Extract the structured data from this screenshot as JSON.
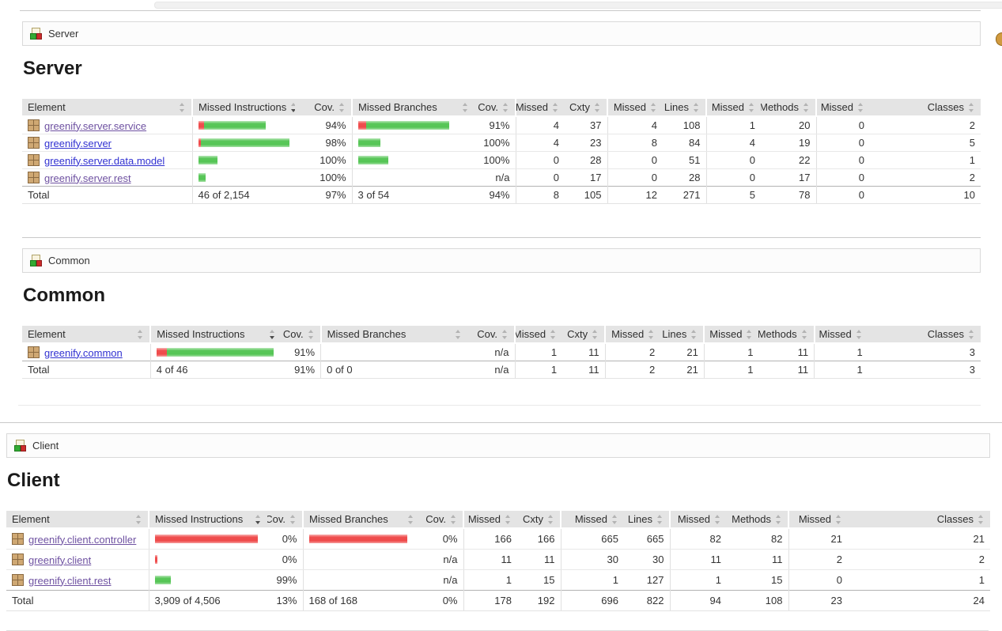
{
  "sort": {
    "column": "Missed Instructions",
    "direction": "desc"
  },
  "colors": {
    "bar_missed": "#ee4040",
    "bar_covered": "#4cc24c",
    "link_blue": "#3131d1",
    "link_purple": "#6e51a1"
  },
  "icons": {
    "breadcrumb": "group-icon",
    "package": "package-icon",
    "top_right": "sessions-icon",
    "sort": "sort-icon"
  },
  "sections": [
    {
      "id": "server",
      "crumb": "Server",
      "heading": "Server",
      "columns": [
        "Element",
        "Missed Instructions",
        "Cov.",
        "Missed Branches",
        "Cov.",
        "Missed",
        "Cxty",
        "Missed",
        "Lines",
        "Missed",
        "Methods",
        "Missed",
        "Classes"
      ],
      "rows": [
        {
          "name": "greenify.server.service",
          "color": "link_purple",
          "ins_bar": {
            "missed": 7,
            "covered": 78
          },
          "ins_cov": "94%",
          "br_bar": {
            "missed": 10,
            "covered": 105
          },
          "br_cov": "91%",
          "nums": [
            "4",
            "37",
            "4",
            "108",
            "1",
            "20",
            "0",
            "2"
          ]
        },
        {
          "name": "greenify.server",
          "color": "link_blue",
          "ins_bar": {
            "missed": 4,
            "covered": 116
          },
          "ins_cov": "98%",
          "br_bar": {
            "missed": 0,
            "covered": 28
          },
          "br_cov": "100%",
          "nums": [
            "4",
            "23",
            "8",
            "84",
            "4",
            "19",
            "0",
            "5"
          ]
        },
        {
          "name": "greenify.server.data.model",
          "color": "link_blue",
          "ins_bar": {
            "missed": 0,
            "covered": 24
          },
          "ins_cov": "100%",
          "br_bar": {
            "missed": 0,
            "covered": 38
          },
          "br_cov": "100%",
          "nums": [
            "0",
            "28",
            "0",
            "51",
            "0",
            "22",
            "0",
            "1"
          ]
        },
        {
          "name": "greenify.server.rest",
          "color": "link_purple",
          "ins_bar": {
            "missed": 0,
            "covered": 9
          },
          "ins_cov": "100%",
          "br_bar": {
            "missed": 0,
            "covered": 0
          },
          "br_cov": "n/a",
          "nums": [
            "0",
            "17",
            "0",
            "28",
            "0",
            "17",
            "0",
            "2"
          ]
        }
      ],
      "total": {
        "label": "Total",
        "ins": "46 of 2,154",
        "ins_cov": "97%",
        "br": "3 of 54",
        "br_cov": "94%",
        "nums": [
          "8",
          "105",
          "12",
          "271",
          "5",
          "78",
          "0",
          "10"
        ]
      }
    },
    {
      "id": "common",
      "crumb": "Common",
      "heading": "Common",
      "columns": [
        "Element",
        "Missed Instructions",
        "Cov.",
        "Missed Branches",
        "Cov.",
        "Missed",
        "Cxty",
        "Missed",
        "Lines",
        "Missed",
        "Methods",
        "Missed",
        "Classes"
      ],
      "rows": [
        {
          "name": "greenify.common",
          "color": "link_blue",
          "ins_bar": {
            "missed": 13,
            "covered": 135
          },
          "ins_cov": "91%",
          "br_bar": {
            "missed": 0,
            "covered": 0
          },
          "br_cov": "n/a",
          "nums": [
            "1",
            "11",
            "2",
            "21",
            "1",
            "11",
            "1",
            "3"
          ]
        }
      ],
      "total": {
        "label": "Total",
        "ins": "4 of 46",
        "ins_cov": "91%",
        "br": "0 of 0",
        "br_cov": "n/a",
        "nums": [
          "1",
          "11",
          "2",
          "21",
          "1",
          "11",
          "1",
          "3"
        ]
      }
    },
    {
      "id": "client",
      "crumb": "Client",
      "heading": "Client",
      "columns": [
        "Element",
        "Missed Instructions",
        "Cov.",
        "Missed Branches",
        "Cov.",
        "Missed",
        "Cxty",
        "Missed",
        "Lines",
        "Missed",
        "Methods",
        "Missed",
        "Classes"
      ],
      "rows": [
        {
          "name": "greenify.client.controller",
          "color": "link_purple",
          "ins_bar": {
            "missed": 130,
            "covered": 0
          },
          "ins_cov": "0%",
          "br_bar": {
            "missed": 124,
            "covered": 0
          },
          "br_cov": "0%",
          "nums": [
            "166",
            "166",
            "665",
            "665",
            "82",
            "82",
            "21",
            "21"
          ]
        },
        {
          "name": "greenify.client",
          "color": "link_purple",
          "ins_bar": {
            "missed": 3,
            "covered": 0
          },
          "ins_cov": "0%",
          "br_bar": {
            "missed": 0,
            "covered": 0
          },
          "br_cov": "n/a",
          "nums": [
            "11",
            "11",
            "30",
            "30",
            "11",
            "11",
            "2",
            "2"
          ]
        },
        {
          "name": "greenify.client.rest",
          "color": "link_purple",
          "ins_bar": {
            "missed": 0,
            "covered": 20
          },
          "ins_cov": "99%",
          "br_bar": {
            "missed": 0,
            "covered": 0
          },
          "br_cov": "n/a",
          "nums": [
            "1",
            "15",
            "1",
            "127",
            "1",
            "15",
            "0",
            "1"
          ]
        }
      ],
      "total": {
        "label": "Total",
        "ins": "3,909 of 4,506",
        "ins_cov": "13%",
        "br": "168 of 168",
        "br_cov": "0%",
        "nums": [
          "178",
          "192",
          "696",
          "822",
          "94",
          "108",
          "23",
          "24"
        ]
      }
    }
  ]
}
